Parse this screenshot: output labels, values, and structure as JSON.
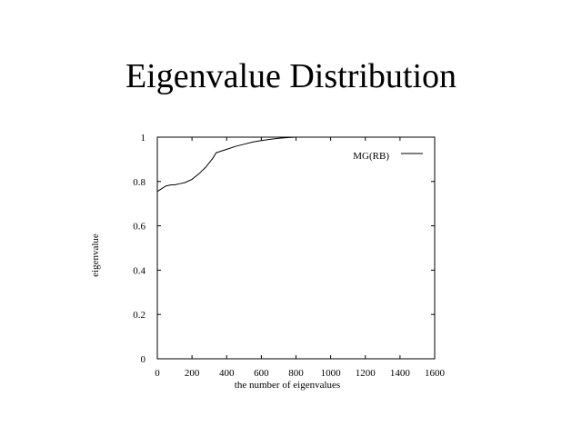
{
  "page": {
    "title": "Eigenvalue Distribution"
  },
  "chart_data": {
    "type": "line",
    "title": "",
    "xlabel": "the number of eigenvalues",
    "ylabel": "eigenvalue",
    "xlim": [
      0,
      1600
    ],
    "ylim": [
      0,
      1
    ],
    "xticks": [
      "0",
      "200",
      "400",
      "600",
      "800",
      "1000",
      "1200",
      "1400",
      "1600"
    ],
    "yticks": [
      "0",
      "0.2",
      "0.4",
      "0.6",
      "0.8",
      "1"
    ],
    "legend_position": "top-right",
    "grid": false,
    "series": [
      {
        "name": "MG(RB)",
        "x": [
          0,
          20,
          50,
          80,
          100,
          130,
          160,
          200,
          240,
          280,
          320,
          340,
          360,
          400,
          450,
          500,
          550,
          600,
          650,
          700,
          750,
          800
        ],
        "y": [
          0.755,
          0.765,
          0.78,
          0.785,
          0.785,
          0.79,
          0.795,
          0.81,
          0.835,
          0.865,
          0.905,
          0.93,
          0.935,
          0.945,
          0.958,
          0.968,
          0.978,
          0.985,
          0.99,
          0.995,
          0.998,
          1.0
        ]
      }
    ]
  }
}
